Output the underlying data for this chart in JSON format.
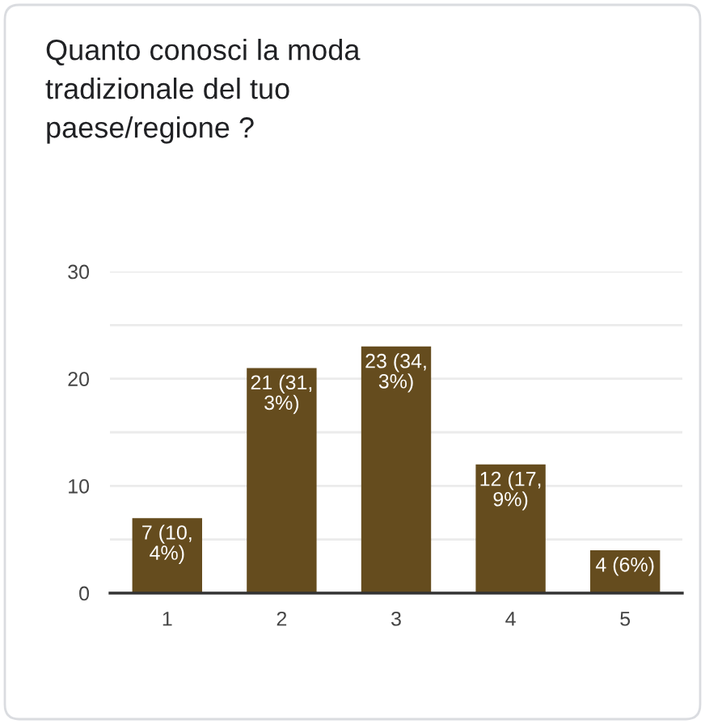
{
  "chart_data": {
    "type": "bar",
    "title": "Quanto conosci la moda tradizionale del tuo paese/regione ?",
    "categories": [
      "1",
      "2",
      "3",
      "4",
      "5"
    ],
    "values": [
      7,
      21,
      23,
      12,
      4
    ],
    "color": "#654c1e",
    "value_labels": [
      "7 (10,4%)",
      "21 (31,3%)",
      "23 (34,3%)",
      "12 (17,9%)",
      "4 (6%)"
    ],
    "ylim": [
      0,
      30
    ],
    "yticks": [
      0,
      {
        "value": 5,
        "label": null
      },
      10,
      {
        "value": 15,
        "label": null
      },
      20,
      {
        "value": 25,
        "label": null
      },
      30
    ],
    "grid": "y"
  }
}
